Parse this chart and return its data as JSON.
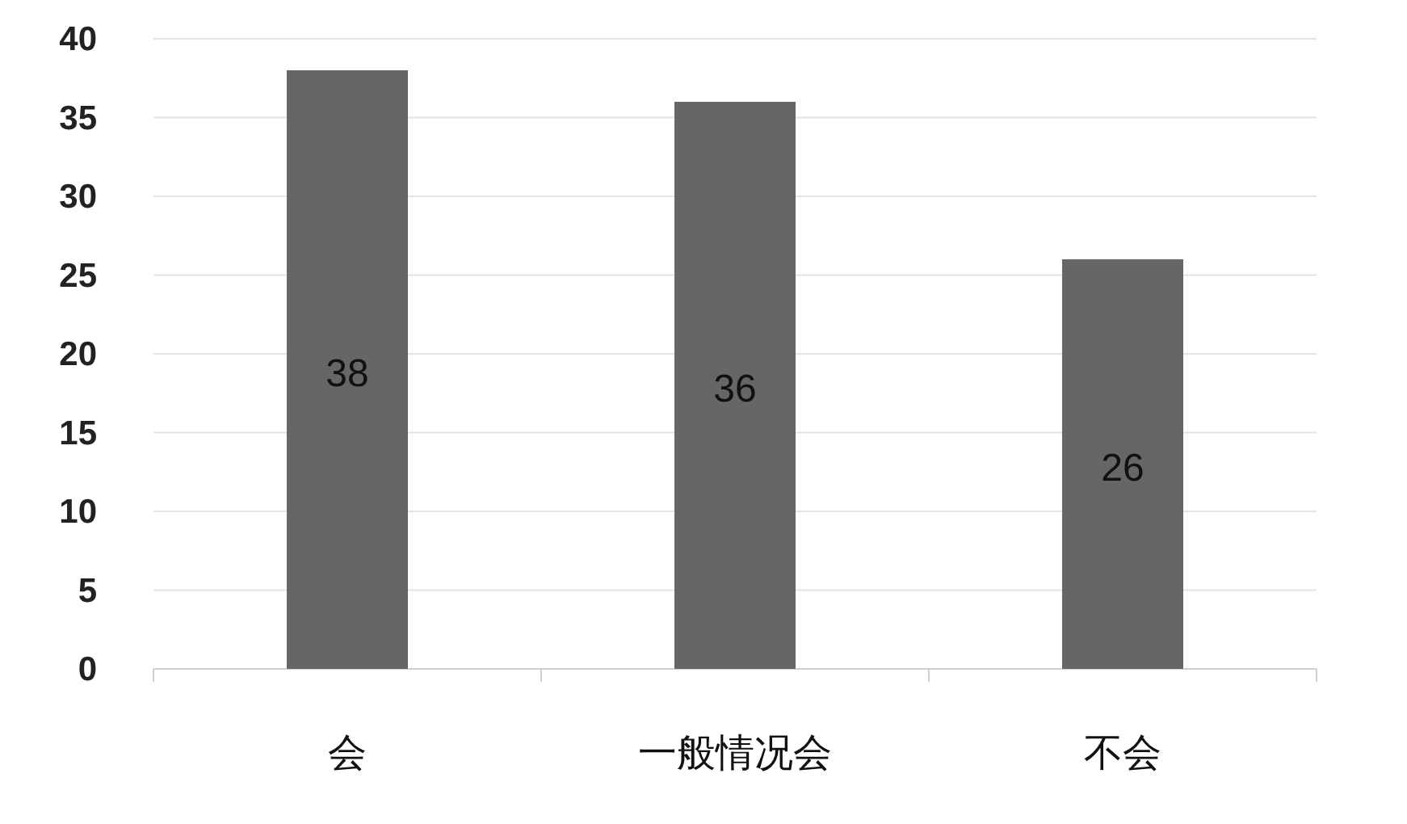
{
  "chart_data": {
    "type": "bar",
    "categories": [
      "会",
      "一般情况会",
      "不会"
    ],
    "values": [
      38,
      36,
      26
    ],
    "color": "#666666",
    "data_labels": true,
    "ylim": [
      0,
      40
    ],
    "yticks": [
      0,
      5,
      10,
      15,
      20,
      25,
      30,
      35,
      40
    ],
    "grid": "y"
  }
}
